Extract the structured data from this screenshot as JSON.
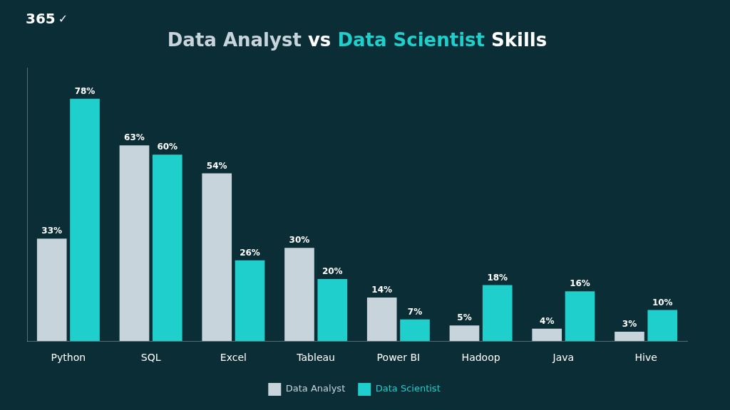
{
  "chart_data": {
    "type": "bar",
    "title": "Data Analyst vs Data Scientist Skills",
    "annotations": [
      "365",
      "✓"
    ],
    "categories": [
      "Python",
      "SQL",
      "Excel",
      "Tableau",
      "Power BI",
      "Hadoop",
      "Java",
      "Hive"
    ],
    "series": [
      {
        "name": "Data Analyst",
        "color": "#c8d4dc",
        "values": [
          33,
          63,
          54,
          30,
          14,
          5,
          4,
          3
        ],
        "value_labels": [
          "33%",
          "63%",
          "54%",
          "30%",
          "14%",
          "5%",
          "4%",
          "3%"
        ]
      },
      {
        "name": "Data Scientist",
        "color": "#1ecfcb",
        "values": [
          78,
          60,
          26,
          20,
          7,
          18,
          16,
          10
        ],
        "value_labels": [
          "78%",
          "60%",
          "26%",
          "20%",
          "7%",
          "18%",
          "16%",
          "10%"
        ]
      }
    ],
    "ylim": [
      0,
      88
    ],
    "yticks": [],
    "grid": false,
    "legend": "bottom",
    "data_labels": true,
    "tick_labels": "x"
  }
}
